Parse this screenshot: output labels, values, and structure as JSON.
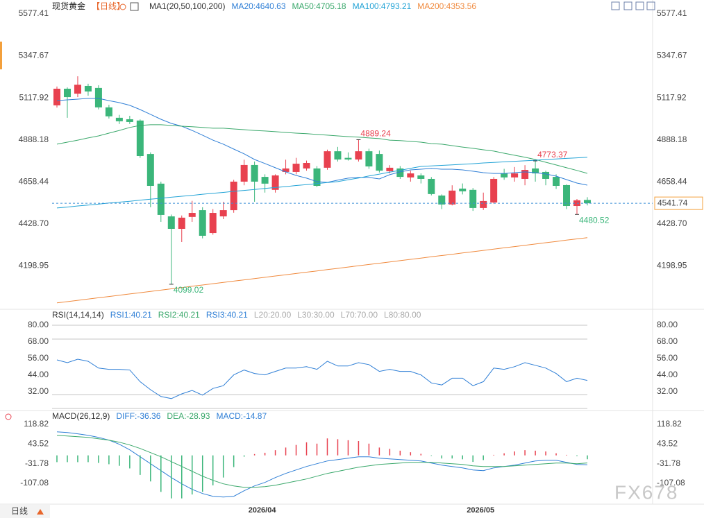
{
  "chart_data": [
    {
      "type": "candlestick",
      "title": "现货黄金",
      "subtitle": "【日线】",
      "indicator": "MA1(20,50,100,200)",
      "up_color": "#e8414f",
      "down_color": "#3bb67a",
      "grid": false,
      "ylim": [
        3966,
        5634
      ],
      "yticks": [
        5577.41,
        5347.67,
        5117.92,
        4888.18,
        4658.44,
        {
          "value": 4428.7,
          "label": "4428.70"
        },
        4198.95
      ],
      "open": [
        5077,
        5168,
        5141,
        5183,
        5172,
        5066,
        5009,
        5001,
        4994,
        4811,
        4649,
        4470,
        4402,
        4467,
        4504,
        4379,
        4470,
        4504,
        4660,
        4751,
        4686,
        4615,
        4713,
        4713,
        4732,
        4732,
        4736,
        4826,
        4790,
        4781,
        4826,
        4811,
        4717,
        4732,
        4683,
        4694,
        4675,
        4584,
        4535,
        4622,
        4615,
        4516,
        4546,
        4705,
        4683,
        4675,
        4732,
        4713,
        4686,
        4641,
        4527,
        4560
      ],
      "high": [
        5180,
        5175,
        5236,
        5195,
        5187,
        5080,
        5025,
        5020,
        5000,
        4820,
        4660,
        4480,
        4475,
        4555,
        4520,
        4510,
        4550,
        4670,
        4780,
        4770,
        4700,
        4700,
        4780,
        4790,
        4775,
        4745,
        4835,
        4850,
        4820,
        4889.24,
        4840,
        4830,
        4750,
        4745,
        4720,
        4705,
        4685,
        4590,
        4640,
        4650,
        4625,
        4600,
        4685,
        4730,
        4740,
        4750,
        4773.37,
        4720,
        4700,
        4645,
        4565,
        4575
      ],
      "low": [
        5065,
        5009,
        5122,
        5130,
        5055,
        5005,
        4975,
        4975,
        4790,
        4520,
        4440,
        4099.02,
        4330,
        4440,
        4350,
        4370,
        4455,
        4490,
        4640,
        4550,
        4600,
        4600,
        4700,
        4700,
        4720,
        4630,
        4725,
        4770,
        4775,
        4770,
        4730,
        4710,
        4705,
        4675,
        4660,
        4650,
        4585,
        4510,
        4530,
        4590,
        4500,
        4505,
        4540,
        4670,
        4660,
        4640,
        4660,
        4640,
        4620,
        4510,
        4480.52,
        4530
      ],
      "close": [
        5168,
        5122,
        5190,
        5153,
        5066,
        5017,
        4990,
        4986,
        4800,
        4637,
        4478,
        4402,
        4463,
        4489,
        4364,
        4489,
        4504,
        4660,
        4751,
        4660,
        4649,
        4694,
        4732,
        4758,
        4762,
        4637,
        4826,
        4781,
        4781,
        4826,
        4743,
        4720,
        4736,
        4686,
        4705,
        4675,
        4592,
        4535,
        4611,
        4607,
        4516,
        4554,
        4675,
        4683,
        4705,
        4724,
        4705,
        4675,
        4637,
        4527,
        4558,
        4541.74
      ],
      "series": [
        {
          "name": "MA20:4640.63",
          "color": "#2f7fd6",
          "values": [
            5103,
            5107,
            5111,
            5115,
            5115,
            5103,
            5092,
            5077,
            5054,
            5028,
            5001,
            4978,
            4963,
            4940,
            4914,
            4887,
            4865,
            4838,
            4812,
            4781,
            4759,
            4736,
            4713,
            4694,
            4679,
            4660,
            4656,
            4668,
            4679,
            4683,
            4683,
            4675,
            4698,
            4713,
            4724,
            4728,
            4732,
            4728,
            4728,
            4724,
            4717,
            4709,
            4705,
            4705,
            4709,
            4713,
            4709,
            4702,
            4690,
            4671,
            4652,
            4640.63
          ]
        },
        {
          "name": "MA50:4705.18",
          "color": "#3aa86b",
          "values": [
            4865,
            4876,
            4887,
            4899,
            4910,
            4925,
            4940,
            4956,
            4967,
            4971,
            4971,
            4967,
            4963,
            4960,
            4956,
            4952,
            4952,
            4948,
            4944,
            4940,
            4937,
            4933,
            4929,
            4925,
            4922,
            4918,
            4914,
            4910,
            4906,
            4903,
            4899,
            4895,
            4887,
            4884,
            4880,
            4876,
            4868,
            4865,
            4857,
            4849,
            4842,
            4834,
            4827,
            4815,
            4804,
            4793,
            4781,
            4766,
            4751,
            4736,
            4721,
            4705.18
          ]
        },
        {
          "name": "MA100:4793.21",
          "color": "#22a3d6",
          "values": [
            4516,
            4521,
            4527,
            4532,
            4537,
            4543,
            4548,
            4553,
            4559,
            4564,
            4569,
            4575,
            4580,
            4585,
            4591,
            4596,
            4601,
            4607,
            4612,
            4617,
            4623,
            4628,
            4633,
            4639,
            4644,
            4649,
            4655,
            4660,
            4670,
            4680,
            4691,
            4701,
            4712,
            4722,
            4733,
            4743,
            4746,
            4749,
            4752,
            4755,
            4758,
            4762,
            4765,
            4768,
            4771,
            4774,
            4777,
            4781,
            4784,
            4787,
            4790,
            4793.21
          ]
        },
        {
          "name": "MA200:4353.56",
          "color": "#f08a3e",
          "values": [
            3997,
            4004,
            4011,
            4018,
            4025,
            4032,
            4039,
            4046,
            4053,
            4060,
            4067,
            4074,
            4081,
            4088,
            4095,
            4102,
            4109,
            4116,
            4123,
            4130,
            4137,
            4144,
            4151,
            4158,
            4165,
            4172,
            4179,
            4186,
            4193,
            4200,
            4207,
            4214,
            4221,
            4228,
            4235,
            4242,
            4249,
            4256,
            4263,
            4270,
            4277,
            4284,
            4291,
            4298,
            4305,
            4312,
            4319,
            4326,
            4333,
            4340,
            4347,
            4353.56
          ]
        }
      ],
      "annotations": [
        4889.24,
        4773.37,
        4099.02,
        4480.52
      ]
    },
    {
      "type": "line",
      "indicator": "RSI(14,14,14)",
      "grid": false,
      "ylim": [
        18.5,
        90.5
      ],
      "yticks": [
        {
          "value": 80,
          "label": "80.00"
        },
        {
          "value": 68,
          "label": "68.00"
        },
        {
          "value": 56,
          "label": "56.00"
        },
        {
          "value": 44,
          "label": "44.00"
        },
        {
          "value": 32,
          "label": "32.00"
        }
      ],
      "levels": [
        80,
        70,
        30,
        20
      ],
      "series": [
        {
          "name": "RSI1:40.21",
          "color": "#2f7fd6",
          "values": [
            55,
            53,
            55.5,
            54,
            49.1,
            48.2,
            48.2,
            47.7,
            39.3,
            33.5,
            28.6,
            27.1,
            30.5,
            33,
            29.6,
            34.4,
            36.4,
            44.2,
            47.7,
            45.2,
            44.2,
            46.7,
            49.1,
            49.1,
            50.1,
            48.2,
            54,
            50.6,
            50.6,
            53,
            51.6,
            46.7,
            48.2,
            46.7,
            46.7,
            44.2,
            38.4,
            36.9,
            41.8,
            41.8,
            36.4,
            39.3,
            49.1,
            48.2,
            50.1,
            53,
            51.1,
            49.1,
            45.2,
            39.3,
            41.8,
            40.21
          ]
        }
      ],
      "legend_extra": [
        {
          "text": "RSI2:40.21",
          "color": "#3aa86b"
        },
        {
          "text": "RSI3:40.21",
          "color": "#2f7fd6"
        },
        {
          "text": "L20:20.00",
          "color": "#aaaaaa"
        },
        {
          "text": "L30:30.00",
          "color": "#aaaaaa"
        },
        {
          "text": "L70:70.00",
          "color": "#aaaaaa"
        },
        {
          "text": "L80:80.00",
          "color": "#aaaaaa"
        }
      ]
    },
    {
      "type": "macd",
      "indicator": "MACD(26,12,9)",
      "grid": false,
      "ylim": [
        -187,
        164
      ],
      "yticks": [
        118.82,
        43.52,
        -31.78,
        -107.08
      ],
      "up_color": "#e8414f",
      "down_color": "#3bb67a",
      "categories": [
        null,
        null,
        null,
        null,
        null,
        null,
        null,
        null,
        null,
        null,
        null,
        null,
        null,
        null,
        null,
        null,
        null,
        null,
        null,
        null,
        "2026/04",
        null,
        null,
        null,
        null,
        null,
        null,
        null,
        null,
        null,
        null,
        null,
        null,
        null,
        null,
        null,
        null,
        null,
        null,
        null,
        null,
        "2026/05",
        null,
        null,
        null,
        null,
        null,
        null,
        null,
        null,
        null,
        null
      ],
      "series": [
        {
          "name": "DIFF:-36.36",
          "color": "#2f7fd6",
          "values": [
            90.4,
            87.8,
            82.5,
            77.1,
            69.2,
            58.5,
            42.6,
            21.3,
            -5.3,
            -31.9,
            -58.5,
            -85.1,
            -109.1,
            -130.3,
            -146.3,
            -156.9,
            -159.6,
            -156.9,
            -135.7,
            -117,
            -103.7,
            -85.1,
            -69.2,
            -55.9,
            -42.6,
            -31.9,
            -21.3,
            -16,
            -10.6,
            -5.3,
            -5.3,
            -10.6,
            -13.3,
            -16,
            -18.6,
            -21.3,
            -29.3,
            -37.2,
            -42.6,
            -47.9,
            -55.9,
            -58.5,
            -47.9,
            -42.6,
            -37.2,
            -29.3,
            -21.3,
            -18.6,
            -18.6,
            -26.6,
            -34.6,
            -36.36
          ]
        },
        {
          "name": "DEA:-28.93",
          "color": "#3aa86b",
          "values": [
            77.1,
            74.5,
            71.8,
            69.2,
            63.8,
            58.5,
            50.5,
            39.9,
            26.6,
            10.6,
            -5.3,
            -23.9,
            -42.6,
            -61.2,
            -79.8,
            -95.8,
            -109.1,
            -117,
            -122.4,
            -122.4,
            -119.7,
            -114.4,
            -106.4,
            -98.4,
            -90.4,
            -79.8,
            -69.2,
            -61.2,
            -53.2,
            -45.2,
            -39.9,
            -34.6,
            -31.9,
            -29.3,
            -26.6,
            -26.6,
            -26.6,
            -29.3,
            -31.9,
            -34.6,
            -39.9,
            -42.6,
            -42.6,
            -42.6,
            -39.9,
            -37.2,
            -34.6,
            -31.9,
            -29.3,
            -29.3,
            -31.9,
            -28.93
          ]
        },
        {
          "name": "MACD:-14.87",
          "color": "#2f7fd6",
          "bars": true,
          "values": [
            -26,
            -26,
            -26,
            -26,
            -29,
            -34,
            -40,
            -50,
            -75,
            -100,
            -140,
            -165,
            -165,
            -150,
            -140,
            -115,
            -85,
            -45,
            -5,
            5,
            10,
            20,
            30,
            40,
            50,
            45,
            65,
            62,
            58,
            55,
            45,
            30,
            25,
            18,
            12,
            6,
            -2,
            -12,
            -12,
            -15,
            -25,
            -18,
            2,
            8,
            15,
            20,
            18,
            15,
            8,
            2,
            -3,
            -14.87
          ]
        }
      ]
    }
  ],
  "period_button": "日线",
  "watermark": "FX678"
}
